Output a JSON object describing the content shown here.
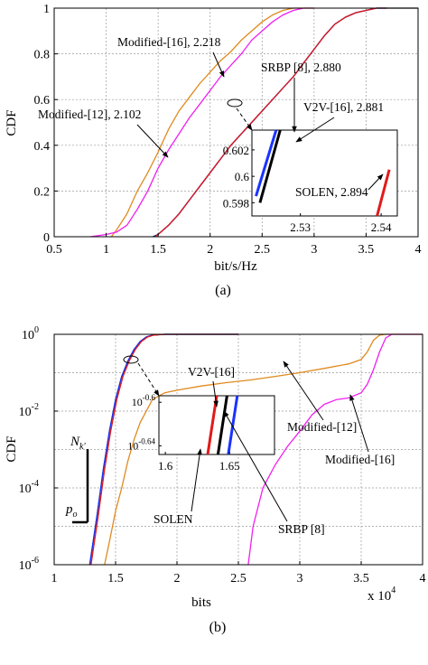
{
  "chart_data": [
    {
      "type": "line",
      "panel_label": "(a)",
      "xlabel": "bit/s/Hz",
      "ylabel": "CDF",
      "xlim": [
        0.5,
        4
      ],
      "ylim": [
        0,
        1
      ],
      "xticks": [
        "0.5",
        "1",
        "1.5",
        "2",
        "2.5",
        "3",
        "3.5",
        "4"
      ],
      "yticks": [
        "0",
        "0.2",
        "0.4",
        "0.6",
        "0.8",
        "1"
      ],
      "grid": true,
      "colors": {
        "orange": "#e08a1e",
        "magenta": "#f020f0",
        "black": "#000000",
        "blue": "#1a33ff",
        "red": "#e11a1a"
      },
      "series": [
        {
          "color": "orange",
          "x": [
            1.05,
            1.1,
            1.2,
            1.3,
            1.4,
            1.5,
            1.6,
            1.7,
            1.8,
            1.9,
            2.0,
            2.1,
            2.2,
            2.3,
            2.4,
            2.5,
            2.6,
            2.7,
            2.8,
            2.9,
            3.0
          ],
          "y": [
            0,
            0.03,
            0.1,
            0.2,
            0.28,
            0.37,
            0.47,
            0.55,
            0.61,
            0.67,
            0.72,
            0.77,
            0.81,
            0.86,
            0.9,
            0.94,
            0.97,
            0.99,
            1,
            1,
            1
          ]
        },
        {
          "color": "magenta",
          "x": [
            0.85,
            1.0,
            1.1,
            1.2,
            1.3,
            1.4,
            1.5,
            1.6,
            1.7,
            1.8,
            1.9,
            2.0,
            2.1,
            2.2,
            2.3,
            2.4,
            2.5,
            2.6,
            2.7,
            2.8,
            2.9,
            3.0
          ],
          "y": [
            0,
            0.01,
            0.02,
            0.05,
            0.12,
            0.2,
            0.3,
            0.38,
            0.45,
            0.52,
            0.58,
            0.64,
            0.7,
            0.75,
            0.8,
            0.86,
            0.9,
            0.94,
            0.97,
            0.99,
            1,
            1
          ]
        },
        {
          "color": "black",
          "x": [
            1.45,
            1.5,
            1.6,
            1.7,
            1.8,
            1.9,
            2.0,
            2.1,
            2.2,
            2.3,
            2.4,
            2.5,
            2.6,
            2.7,
            2.8,
            2.9,
            3.0,
            3.1,
            3.2,
            3.3,
            3.4,
            3.5,
            3.6,
            3.7,
            3.8,
            3.9,
            4.0
          ],
          "y": [
            0,
            0.01,
            0.05,
            0.1,
            0.16,
            0.22,
            0.28,
            0.34,
            0.4,
            0.45,
            0.5,
            0.55,
            0.6,
            0.65,
            0.7,
            0.76,
            0.82,
            0.88,
            0.93,
            0.96,
            0.98,
            0.99,
            1,
            1,
            1,
            1,
            1
          ]
        },
        {
          "color": "blue",
          "x": [
            1.46,
            1.5,
            1.6,
            1.7,
            1.8,
            1.9,
            2.0,
            2.1,
            2.2,
            2.3,
            2.4,
            2.5,
            2.6,
            2.7,
            2.8,
            2.9,
            3.0,
            3.1,
            3.2,
            3.3,
            3.4,
            3.5,
            3.6,
            3.7
          ],
          "y": [
            0,
            0.01,
            0.05,
            0.1,
            0.16,
            0.22,
            0.28,
            0.34,
            0.4,
            0.45,
            0.5,
            0.55,
            0.6,
            0.65,
            0.7,
            0.76,
            0.82,
            0.88,
            0.93,
            0.96,
            0.98,
            0.99,
            1,
            1
          ]
        },
        {
          "color": "red",
          "x": [
            1.47,
            1.5,
            1.6,
            1.7,
            1.8,
            1.9,
            2.0,
            2.1,
            2.2,
            2.3,
            2.4,
            2.5,
            2.6,
            2.7,
            2.8,
            2.9,
            3.0,
            3.1,
            3.2,
            3.3,
            3.4,
            3.5,
            3.6,
            3.7
          ],
          "y": [
            0,
            0.01,
            0.05,
            0.1,
            0.16,
            0.22,
            0.28,
            0.34,
            0.4,
            0.45,
            0.5,
            0.55,
            0.6,
            0.65,
            0.7,
            0.76,
            0.82,
            0.88,
            0.93,
            0.96,
            0.98,
            0.99,
            1,
            1
          ]
        }
      ],
      "inset": {
        "xlim": [
          2.524,
          2.542
        ],
        "ylim": [
          0.597,
          0.6035
        ],
        "xticks": [
          "2.53",
          "2.54"
        ],
        "yticks": [
          "0.598",
          "0.6",
          "0.602"
        ],
        "series": [
          {
            "color": "black",
            "x": [
              2.525,
              2.5275
            ],
            "y": [
              0.598,
              0.6035
            ]
          },
          {
            "color": "blue",
            "x": [
              2.5245,
              2.527
            ],
            "y": [
              0.5985,
              0.6035
            ]
          },
          {
            "color": "red",
            "x": [
              2.5395,
              2.541
            ],
            "y": [
              0.597,
              0.6005
            ]
          }
        ]
      },
      "annotations": [
        {
          "text": "Modified-[16], 2.218"
        },
        {
          "text": "SRBP [8], 2.880"
        },
        {
          "text": "V2V-[16], 2.881"
        },
        {
          "text": "Modified-[12], 2.102"
        },
        {
          "text": "SOLEN, 2.894"
        }
      ]
    },
    {
      "type": "line",
      "panel_label": "(b)",
      "xlabel": "bits",
      "x_multiplier": "x 10",
      "x_multiplier_exp": "4",
      "ylabel": "CDF",
      "y_scale": "log",
      "xlim": [
        1,
        4
      ],
      "ylim": [
        1e-06,
        1
      ],
      "xticks": [
        "1",
        "1.5",
        "2",
        "2.5",
        "3",
        "3.5",
        "4"
      ],
      "yticks": [
        {
          "base": "10",
          "exp": "0"
        },
        {
          "base": "10",
          "exp": "-2"
        },
        {
          "base": "10",
          "exp": "-4"
        },
        {
          "base": "10",
          "exp": "-6"
        }
      ],
      "grid": true,
      "series": [
        {
          "color": "orange",
          "x": [
            1.41,
            1.45,
            1.5,
            1.55,
            1.6,
            1.65,
            1.7,
            1.8,
            1.9,
            2.0,
            2.2,
            2.4,
            2.6,
            2.8,
            3.0,
            3.2,
            3.4,
            3.5,
            3.55,
            3.6,
            3.65,
            3.7,
            3.8,
            4.0
          ],
          "y": [
            1e-06,
            4e-06,
            2.5e-05,
            0.0001,
            0.0005,
            0.0018,
            0.005,
            0.02,
            0.03,
            0.035,
            0.045,
            0.055,
            0.065,
            0.08,
            0.1,
            0.13,
            0.17,
            0.22,
            0.35,
            0.7,
            0.95,
            1,
            1,
            1
          ]
        },
        {
          "color": "magenta",
          "x": [
            2.58,
            2.62,
            2.7,
            2.8,
            2.9,
            3.0,
            3.1,
            3.2,
            3.3,
            3.4,
            3.5,
            3.55,
            3.6,
            3.65,
            3.7,
            3.75,
            3.8,
            4.0
          ],
          "y": [
            1e-06,
            1e-05,
            0.0001,
            0.0004,
            0.0012,
            0.003,
            0.008,
            0.015,
            0.02,
            0.022,
            0.03,
            0.05,
            0.12,
            0.35,
            0.8,
            1,
            1,
            1
          ]
        },
        {
          "color": "black",
          "x": [
            1.29,
            1.35,
            1.4,
            1.45,
            1.5,
            1.55,
            1.6,
            1.65,
            1.7,
            1.75,
            1.8,
            1.9,
            2.0,
            2.5
          ],
          "y": [
            1e-06,
            2e-05,
            0.0003,
            0.003,
            0.02,
            0.08,
            0.2,
            0.4,
            0.65,
            0.85,
            0.95,
            1,
            1,
            1
          ]
        },
        {
          "color": "blue",
          "x": [
            1.29,
            1.35,
            1.4,
            1.45,
            1.5,
            1.55,
            1.6,
            1.65,
            1.7,
            1.75,
            1.8,
            1.9,
            2.0,
            2.5
          ],
          "y": [
            1e-06,
            2e-05,
            0.0003,
            0.003,
            0.02,
            0.08,
            0.2,
            0.4,
            0.65,
            0.85,
            0.95,
            1,
            1,
            1
          ]
        },
        {
          "color": "red",
          "x": [
            1.3,
            1.36,
            1.41,
            1.46,
            1.51,
            1.56,
            1.61,
            1.66,
            1.71,
            1.76,
            1.81,
            1.91,
            2.01,
            2.5
          ],
          "y": [
            1e-06,
            2e-05,
            0.0003,
            0.003,
            0.02,
            0.08,
            0.2,
            0.4,
            0.65,
            0.85,
            0.95,
            1,
            1,
            1
          ]
        }
      ],
      "inset": {
        "xlim": [
          1.595,
          1.685
        ],
        "ylim_log10": [
          -0.648,
          -0.594
        ],
        "xticks": [
          "1.6",
          "1.65"
        ],
        "yticks": [
          {
            "base": "10",
            "exp": "-0.6"
          },
          {
            "base": "10",
            "exp": "-0.64"
          }
        ],
        "series": [
          {
            "color": "red",
            "x": [
              1.633,
              1.64
            ],
            "y_log10": [
              -0.648,
              -0.594
            ]
          },
          {
            "color": "black",
            "x": [
              1.641,
              1.648
            ],
            "y_log10": [
              -0.648,
              -0.594
            ]
          },
          {
            "color": "blue",
            "x": [
              1.649,
              1.656
            ],
            "y_log10": [
              -0.648,
              -0.594
            ]
          }
        ]
      },
      "annotations": [
        {
          "text": "V2V-[16]"
        },
        {
          "text": "Modified-[12]"
        },
        {
          "text": "Modified-[16]"
        },
        {
          "text": "SOLEN"
        },
        {
          "text": "SRBP [8]"
        },
        {
          "text": "N",
          "sub": "k'"
        },
        {
          "text": "p",
          "sub": "o"
        }
      ]
    }
  ]
}
